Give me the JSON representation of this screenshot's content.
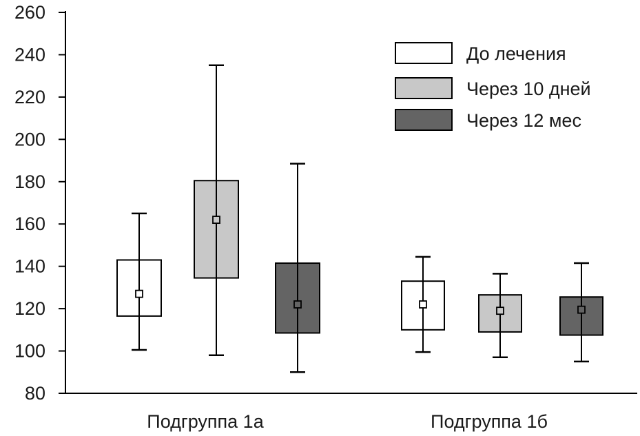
{
  "chart_data": {
    "type": "box",
    "categories": [
      "Подгруппа 1а",
      "Подгруппа 1б"
    ],
    "ylim": [
      80,
      260
    ],
    "yticks": [
      80,
      100,
      120,
      140,
      160,
      180,
      200,
      220,
      240,
      260
    ],
    "grid": false,
    "legend_position": "top-right",
    "series": [
      {
        "name": "До лечения",
        "color": "#ffffff",
        "boxes": [
          {
            "category": "Подгруппа 1а",
            "min": 100.5,
            "q1": 116.5,
            "mean": 127,
            "q3": 143,
            "max": 165
          },
          {
            "category": "Подгруппа 1б",
            "min": 99.5,
            "q1": 110,
            "mean": 122,
            "q3": 133,
            "max": 144.5
          }
        ]
      },
      {
        "name": "Через 10 дней",
        "color": "#c8c8c8",
        "boxes": [
          {
            "category": "Подгруппа 1а",
            "min": 98,
            "q1": 134.5,
            "mean": 162,
            "q3": 180.5,
            "max": 235
          },
          {
            "category": "Подгруппа 1б",
            "min": 97,
            "q1": 109,
            "mean": 119,
            "q3": 126.5,
            "max": 136.5
          }
        ]
      },
      {
        "name": "Через 12 мес",
        "color": "#646464",
        "boxes": [
          {
            "category": "Подгруппа 1а",
            "min": 90,
            "q1": 108.5,
            "mean": 122,
            "q3": 141.5,
            "max": 188.5
          },
          {
            "category": "Подгруппа 1б",
            "min": 95,
            "q1": 107.5,
            "mean": 119.5,
            "q3": 125.5,
            "max": 141.5
          }
        ]
      }
    ]
  }
}
